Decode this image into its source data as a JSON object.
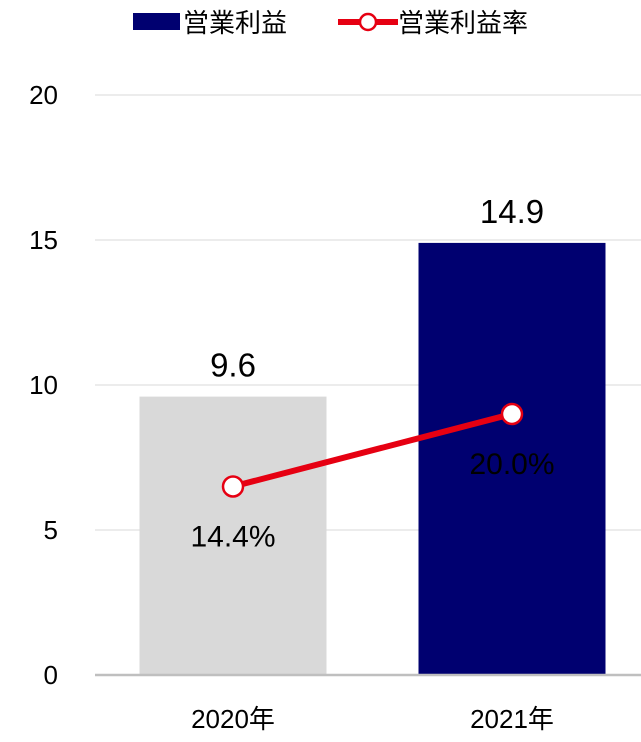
{
  "chart_data": {
    "type": "bar",
    "categories": [
      "2020年",
      "2021年"
    ],
    "ylim": [
      0,
      20
    ],
    "yticks": [
      0,
      5,
      10,
      15,
      20
    ],
    "grid": true,
    "legend_position": "top",
    "series": [
      {
        "name": "営業利益",
        "kind": "bar",
        "values": [
          9.6,
          14.9
        ],
        "labels": [
          "9.6",
          "14.9"
        ],
        "bar_colors": [
          "#d9d9d9",
          "#000070"
        ],
        "color": "#000070"
      },
      {
        "name": "営業利益率",
        "kind": "line",
        "values": [
          14.4,
          20.0
        ],
        "plot_values": [
          6.5,
          9.0
        ],
        "labels": [
          "14.4%",
          "20.0%"
        ],
        "color": "#e60012"
      }
    ]
  }
}
